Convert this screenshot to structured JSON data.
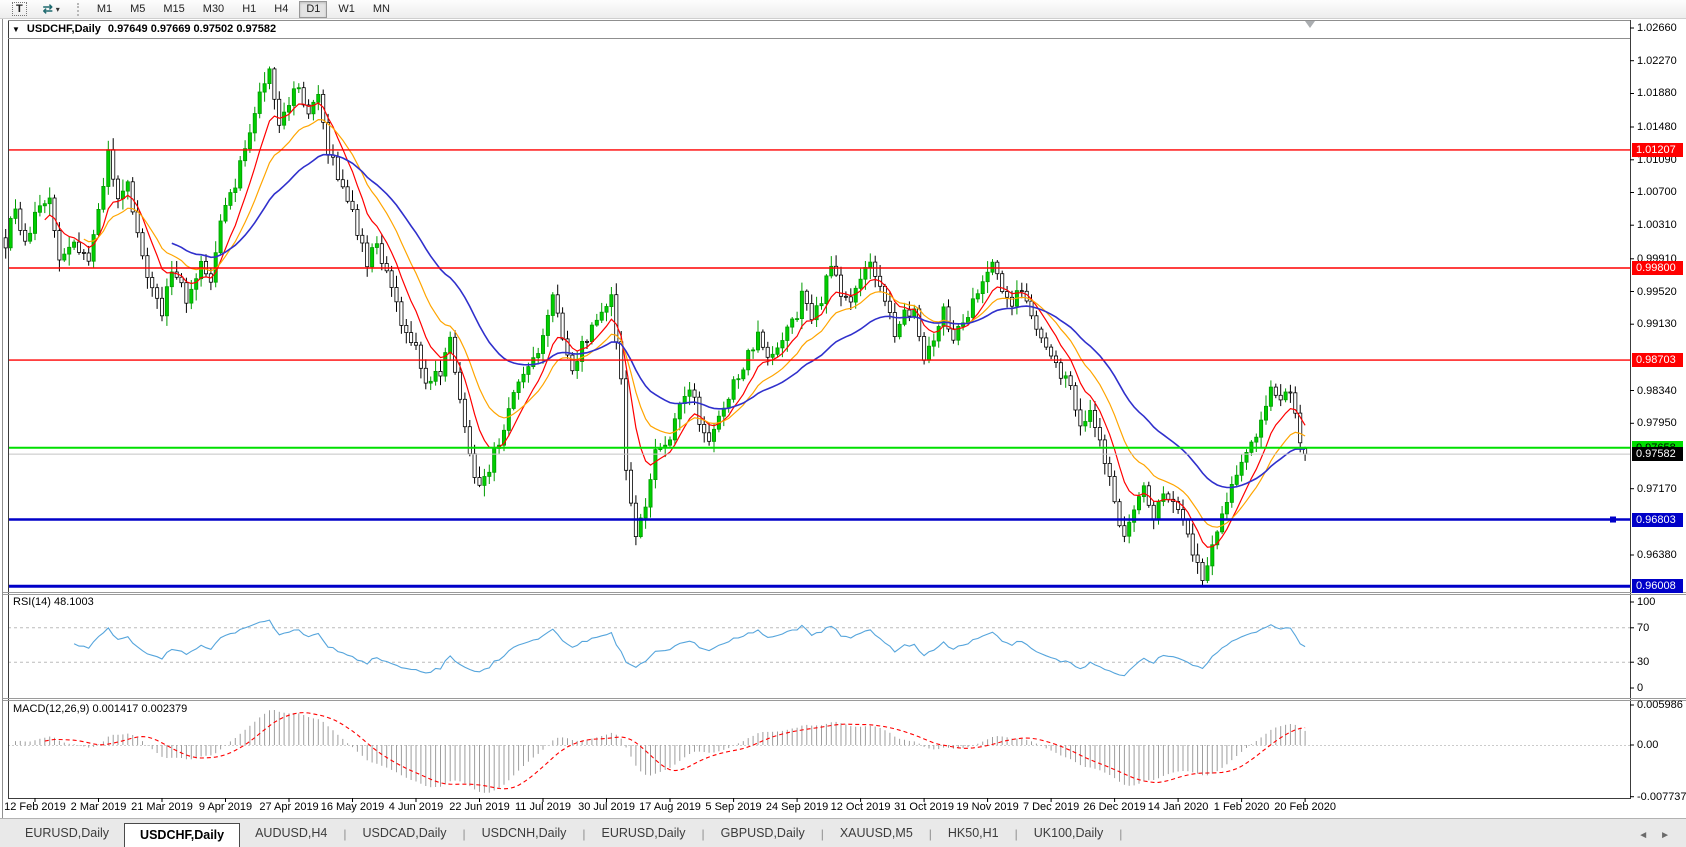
{
  "toolbar": {
    "text_button_label": "T",
    "timeframes": [
      "M1",
      "M5",
      "M15",
      "M30",
      "H1",
      "H4",
      "D1",
      "W1",
      "MN"
    ],
    "active_timeframe": "D1"
  },
  "chart": {
    "symbol_title": "USDCHF,Daily",
    "ohlc_text": "0.97649 0.97669 0.97502 0.97582",
    "ohlc_values": [
      0.97649,
      0.97669,
      0.97502,
      0.97582
    ],
    "y_ticks": [
      "1.02660",
      "1.02270",
      "1.01880",
      "1.01480",
      "1.01090",
      "1.00700",
      "1.00310",
      "0.99910",
      "0.99520",
      "0.99130",
      "0.98340",
      "0.97950",
      "0.97170",
      "0.96380"
    ],
    "levels": [
      {
        "label": "1.01207",
        "price": 1.01207,
        "color": "#FF0000",
        "text_color": "#FFFFFF",
        "width": 1.4
      },
      {
        "label": "0.99800",
        "price": 0.998,
        "color": "#FF0000",
        "text_color": "#FFFFFF",
        "width": 1.4
      },
      {
        "label": "0.98703",
        "price": 0.98703,
        "color": "#FF0000",
        "text_color": "#FFFFFF",
        "width": 1.4
      },
      {
        "label": "0.97658",
        "price": 0.97658,
        "color": "#00DF00",
        "text_color": "#000000",
        "width": 2
      },
      {
        "label": "0.96803",
        "price": 0.96803,
        "color": "#0000C8",
        "text_color": "#FFFFFF",
        "width": 2.4,
        "handle": true
      },
      {
        "label": "0.96008",
        "price": 0.96008,
        "color": "#0000C8",
        "text_color": "#FFFFFF",
        "width": 3
      }
    ],
    "current_price": {
      "label": "0.97582",
      "price": 0.97582,
      "box_color": "#000000",
      "text_color": "#FFFFFF",
      "line_color": "#C4C4C4"
    },
    "dates": [
      "12 Feb 2019",
      "2 Mar 2019",
      "21 Mar 2019",
      "9 Apr 2019",
      "27 Apr 2019",
      "16 May 2019",
      "4 Jun 2019",
      "22 Jun 2019",
      "11 Jul 2019",
      "30 Jul 2019",
      "17 Aug 2019",
      "5 Sep 2019",
      "24 Sep 2019",
      "12 Oct 2019",
      "31 Oct 2019",
      "19 Nov 2019",
      "7 Dec 2019",
      "26 Dec 2019",
      "14 Jan 2020",
      "1 Feb 2020",
      "20 Feb 2020"
    ],
    "candle_up_color": "#00CE00",
    "candle_down_color": "#FFFFFF",
    "candle_up_stroke": "#009B00",
    "candle_down_stroke": "#000000",
    "ma_lines": [
      {
        "name": "fast",
        "color": "#FF0000",
        "period": 8
      },
      {
        "name": "medium",
        "color": "#FFA500",
        "period": 16
      },
      {
        "name": "slow",
        "color": "#3030CC",
        "period": 34
      }
    ],
    "price_path_approx": [
      [
        -6,
        1.001
      ],
      [
        -4,
        1.0055
      ],
      [
        -2,
        1.0005
      ],
      [
        0,
        1.004
      ],
      [
        3,
        1.0062
      ],
      [
        5,
        0.9992
      ],
      [
        8,
        1.0008
      ],
      [
        11,
        0.9988
      ],
      [
        13,
        1.0045
      ],
      [
        15,
        1.0115
      ],
      [
        17,
        1.0058
      ],
      [
        19,
        1.0082
      ],
      [
        22,
        0.9988
      ],
      [
        26,
        0.9924
      ],
      [
        28,
        0.9982
      ],
      [
        31,
        0.9944
      ],
      [
        34,
        0.9988
      ],
      [
        36,
        0.9958
      ],
      [
        38,
        1.0038
      ],
      [
        41,
        1.0078
      ],
      [
        44,
        1.0148
      ],
      [
        46,
        1.0188
      ],
      [
        48,
        1.0222
      ],
      [
        50,
        1.015
      ],
      [
        52,
        1.0178
      ],
      [
        54,
        1.0198
      ],
      [
        56,
        1.0158
      ],
      [
        58,
        1.0185
      ],
      [
        60,
        1.012
      ],
      [
        63,
        1.0078
      ],
      [
        65,
        1.0045
      ],
      [
        68,
        0.9985
      ],
      [
        70,
        1.001
      ],
      [
        73,
        0.995
      ],
      [
        76,
        0.99
      ],
      [
        78,
        0.9888
      ],
      [
        80,
        0.9845
      ],
      [
        83,
        0.9856
      ],
      [
        85,
        0.9895
      ],
      [
        87,
        0.982
      ],
      [
        89,
        0.9755
      ],
      [
        91,
        0.9718
      ],
      [
        93,
        0.9742
      ],
      [
        96,
        0.9792
      ],
      [
        99,
        0.9845
      ],
      [
        102,
        0.9868
      ],
      [
        104,
        0.9898
      ],
      [
        106,
        0.9943
      ],
      [
        108,
        0.9898
      ],
      [
        110,
        0.9862
      ],
      [
        112,
        0.9886
      ],
      [
        114,
        0.9906
      ],
      [
        116,
        0.993
      ],
      [
        118,
        0.9942
      ],
      [
        120,
        0.985
      ],
      [
        121,
        0.9742
      ],
      [
        123,
        0.9662
      ],
      [
        125,
        0.97
      ],
      [
        127,
        0.9758
      ],
      [
        130,
        0.9775
      ],
      [
        132,
        0.9812
      ],
      [
        134,
        0.984
      ],
      [
        136,
        0.98
      ],
      [
        138,
        0.9772
      ],
      [
        140,
        0.98
      ],
      [
        143,
        0.984
      ],
      [
        145,
        0.9864
      ],
      [
        148,
        0.9898
      ],
      [
        150,
        0.987
      ],
      [
        152,
        0.988
      ],
      [
        154,
        0.991
      ],
      [
        156,
        0.9925
      ],
      [
        157,
        0.995
      ],
      [
        159,
        0.992
      ],
      [
        161,
        0.9944
      ],
      [
        163,
        0.9988
      ],
      [
        165,
        0.995
      ],
      [
        167,
        0.9935
      ],
      [
        169,
        0.9966
      ],
      [
        171,
        0.999
      ],
      [
        173,
        0.996
      ],
      [
        176,
        0.9905
      ],
      [
        178,
        0.9925
      ],
      [
        180,
        0.9934
      ],
      [
        182,
        0.9876
      ],
      [
        184,
        0.99
      ],
      [
        186,
        0.993
      ],
      [
        188,
        0.9896
      ],
      [
        190,
        0.9915
      ],
      [
        193,
        0.995
      ],
      [
        195,
        0.998
      ],
      [
        196,
        0.9992
      ],
      [
        198,
        0.995
      ],
      [
        200,
        0.994
      ],
      [
        202,
        0.9958
      ],
      [
        204,
        0.993
      ],
      [
        206,
        0.9895
      ],
      [
        208,
        0.9872
      ],
      [
        210,
        0.9855
      ],
      [
        212,
        0.984
      ],
      [
        214,
        0.9795
      ],
      [
        216,
        0.9806
      ],
      [
        218,
        0.978
      ],
      [
        220,
        0.9726
      ],
      [
        221,
        0.9696
      ],
      [
        223,
        0.9655
      ],
      [
        225,
        0.969
      ],
      [
        227,
        0.9722
      ],
      [
        229,
        0.9686
      ],
      [
        231,
        0.9716
      ],
      [
        233,
        0.97
      ],
      [
        235,
        0.9686
      ],
      [
        237,
        0.9645
      ],
      [
        239,
        0.9614
      ],
      [
        241,
        0.965
      ],
      [
        243,
        0.969
      ],
      [
        245,
        0.972
      ],
      [
        247,
        0.9742
      ],
      [
        249,
        0.9768
      ],
      [
        251,
        0.98
      ],
      [
        253,
        0.9843
      ],
      [
        255,
        0.9816
      ],
      [
        257,
        0.9838
      ],
      [
        259,
        0.9772
      ],
      [
        260,
        0.97582
      ]
    ]
  },
  "rsi": {
    "label": "RSI(14) 48.1003",
    "ticks": [
      {
        "v": 100,
        "label": "100"
      },
      {
        "v": 70,
        "label": "70"
      },
      {
        "v": 30,
        "label": "30"
      },
      {
        "v": 0,
        "label": "0"
      }
    ],
    "dashed_levels": [
      70,
      30
    ],
    "line_color": "#56A5DC"
  },
  "macd": {
    "label": "MACD(12,26,9) 0.001417 0.002379",
    "ticks": [
      {
        "label": "0.005986",
        "v": 0.005986
      },
      {
        "label": "0.00",
        "v": 0
      },
      {
        "label": "-0.007737",
        "v": -0.007737
      }
    ],
    "histogram_color": "#9E9E9E",
    "signal_color": "#FF0000"
  },
  "tabbar": {
    "tabs": [
      "EURUSD,Daily",
      "USDCHF,Daily",
      "AUDUSD,H4",
      "USDCAD,Daily",
      "USDCNH,Daily",
      "EURUSD,Daily",
      "GBPUSD,Daily",
      "XAUUSD,M5",
      "HK50,H1",
      "UK100,Daily"
    ],
    "active_index": 1
  },
  "chart_data": {
    "type": "candlestick",
    "symbol": "USDCHF",
    "timeframe": "Daily",
    "x_range": [
      "12 Feb 2019",
      "20 Feb 2020"
    ],
    "y_axis_range": [
      0.9594,
      1.0276
    ],
    "last_ohlc": {
      "open": 0.97649,
      "high": 0.97669,
      "low": 0.97502,
      "close": 0.97582
    },
    "horizontal_levels": [
      1.01207,
      0.998,
      0.98703,
      0.97658,
      0.96803,
      0.96008
    ],
    "indicators": {
      "rsi_14": 48.1003,
      "macd_12_26_9": [
        0.001417,
        0.002379
      ]
    },
    "macd_scale": [
      -0.007737,
      0.005986
    ]
  }
}
